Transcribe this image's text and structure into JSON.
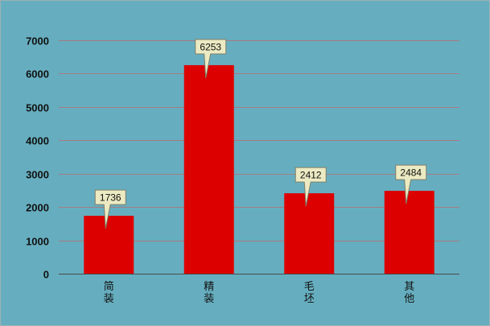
{
  "chart_data": {
    "type": "bar",
    "title": "",
    "xlabel": "",
    "ylabel": "",
    "categories": [
      "简装",
      "精装",
      "毛坯",
      "其他"
    ],
    "values": [
      1736,
      6253,
      2412,
      2484
    ],
    "data_labels": [
      "1736",
      "6253",
      "2412",
      "2484"
    ],
    "ylim": [
      0,
      7000
    ],
    "yticks": [
      0,
      1000,
      2000,
      3000,
      4000,
      5000,
      6000,
      7000
    ],
    "ytick_labels": [
      "0",
      "1000",
      "2000",
      "3000",
      "4000",
      "5000",
      "6000",
      "7000"
    ],
    "grid": true,
    "legend": "none",
    "colors": {
      "background": "#66aebf",
      "bar": "#dd0000",
      "gridline": "#a47b83",
      "callout": "#ebeac2"
    }
  }
}
